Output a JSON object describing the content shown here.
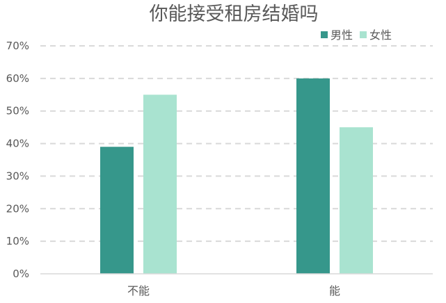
{
  "chart_data": {
    "type": "bar",
    "title": "你能接受租房结婚吗",
    "categories": [
      "不能",
      "能"
    ],
    "series": [
      {
        "name": "男性",
        "values": [
          39,
          60
        ],
        "color": "#36978B"
      },
      {
        "name": "女性",
        "values": [
          55,
          45
        ],
        "color": "#A9E3D0"
      }
    ],
    "y_ticks": [
      "0%",
      "10%",
      "20%",
      "30%",
      "40%",
      "50%",
      "60%",
      "70%"
    ],
    "ylim": [
      0,
      70
    ],
    "grid": true,
    "legend_position": "top-right"
  }
}
